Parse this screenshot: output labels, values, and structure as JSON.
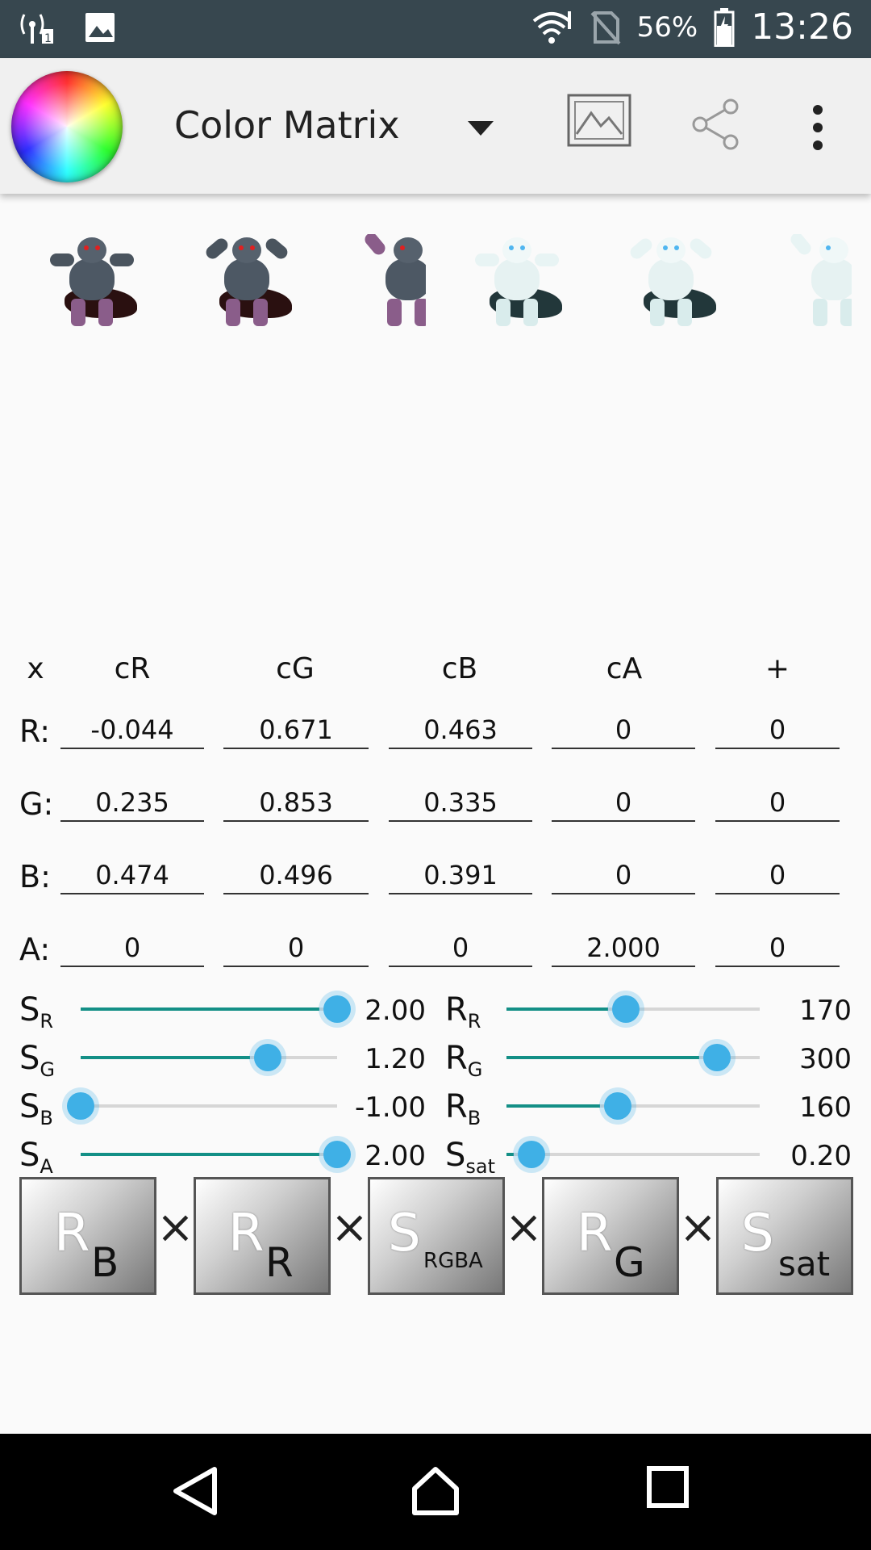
{
  "status_bar": {
    "battery_percent": "56%",
    "time": "13:26",
    "icons": [
      "signal-icon",
      "image-icon",
      "wifi-icon",
      "no-sim-icon",
      "battery-charging-icon"
    ]
  },
  "toolbar": {
    "title": "Color Matrix",
    "icons": [
      "color-wheel-logo",
      "dropdown-arrow-icon",
      "image-icon",
      "share-icon",
      "overflow-menu-icon"
    ]
  },
  "matrix": {
    "headers": [
      "x",
      "cR",
      "cG",
      "cB",
      "cA",
      "+"
    ],
    "rows": [
      {
        "label": "R:",
        "values": [
          "-0.044",
          "0.671",
          "0.463",
          "0",
          "0"
        ]
      },
      {
        "label": "G:",
        "values": [
          "0.235",
          "0.853",
          "0.335",
          "0",
          "0"
        ]
      },
      {
        "label": "B:",
        "values": [
          "0.474",
          "0.496",
          "0.391",
          "0",
          "0"
        ]
      },
      {
        "label": "A:",
        "values": [
          "0",
          "0",
          "0",
          "2.000",
          "0"
        ]
      }
    ]
  },
  "sliders_left": [
    {
      "label": "S",
      "sub": "R",
      "value": "2.00",
      "fraction": 1.0
    },
    {
      "label": "S",
      "sub": "G",
      "value": "1.20",
      "fraction": 0.73
    },
    {
      "label": "S",
      "sub": "B",
      "value": "-1.00",
      "fraction": 0.0
    },
    {
      "label": "S",
      "sub": "A",
      "value": "2.00",
      "fraction": 1.0
    }
  ],
  "sliders_right": [
    {
      "label": "R",
      "sub": "R",
      "value": "170",
      "fraction": 0.47
    },
    {
      "label": "R",
      "sub": "G",
      "value": "300",
      "fraction": 0.83
    },
    {
      "label": "R",
      "sub": "B",
      "value": "160",
      "fraction": 0.44
    },
    {
      "label": "S",
      "sub": "sat",
      "value": "0.20",
      "fraction": 0.1
    }
  ],
  "transform_boxes": [
    {
      "main": "R",
      "sub": "B"
    },
    {
      "main": "R",
      "sub": "R"
    },
    {
      "main": "S",
      "sub": "RGBA"
    },
    {
      "main": "R",
      "sub": "G"
    },
    {
      "main": "S",
      "sub": "sat"
    }
  ],
  "times_symbol": "×",
  "colors": {
    "slider_fill": "#138f86",
    "slider_thumb": "#3fb0e6",
    "status_bar": "#37474f"
  }
}
